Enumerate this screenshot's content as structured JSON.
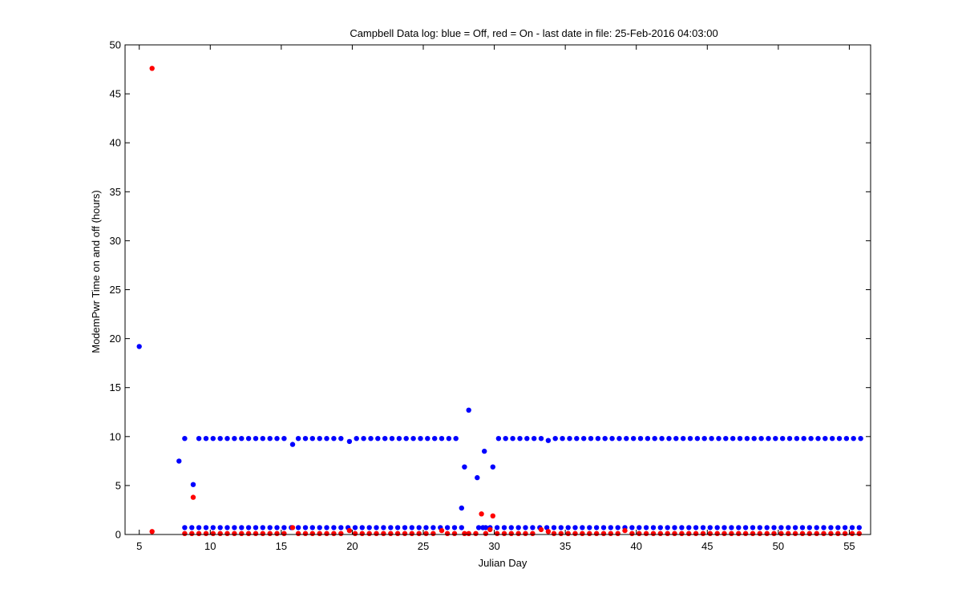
{
  "chart_data": {
    "type": "scatter",
    "title": "Campbell Data log: blue = Off, red = On -  last date in file: 25-Feb-2016 04:03:00",
    "xlabel": "Julian Day",
    "ylabel": "ModemPwr Time on and off (hours)",
    "xlim": [
      4,
      56.5
    ],
    "ylim": [
      0,
      50
    ],
    "xticks": [
      5,
      10,
      15,
      20,
      25,
      30,
      35,
      40,
      45,
      50,
      55
    ],
    "yticks": [
      0,
      5,
      10,
      15,
      20,
      25,
      30,
      35,
      40,
      45,
      50
    ],
    "grid": false,
    "series": [
      {
        "color": "#0000ff",
        "points": [
          [
            5.0,
            19.2
          ],
          [
            7.8,
            7.5
          ],
          [
            8.8,
            5.1
          ],
          [
            27.7,
            2.7
          ],
          [
            27.9,
            6.9
          ],
          [
            28.2,
            12.7
          ],
          [
            28.8,
            5.8
          ],
          [
            29.3,
            8.5
          ],
          [
            29.9,
            6.9
          ],
          [
            15.8,
            9.2
          ],
          [
            19.8,
            9.5
          ],
          [
            33.8,
            9.6
          ],
          [
            8.2,
            9.8
          ],
          [
            9.2,
            9.8
          ],
          [
            9.7,
            9.8
          ],
          [
            10.2,
            9.8
          ],
          [
            10.7,
            9.8
          ],
          [
            11.2,
            9.8
          ],
          [
            11.7,
            9.8
          ],
          [
            12.2,
            9.8
          ],
          [
            12.7,
            9.8
          ],
          [
            13.2,
            9.8
          ],
          [
            13.7,
            9.8
          ],
          [
            14.2,
            9.8
          ],
          [
            14.7,
            9.8
          ],
          [
            15.2,
            9.8
          ],
          [
            16.2,
            9.8
          ],
          [
            16.7,
            9.8
          ],
          [
            17.2,
            9.8
          ],
          [
            17.7,
            9.8
          ],
          [
            18.2,
            9.8
          ],
          [
            18.7,
            9.8
          ],
          [
            19.2,
            9.8
          ],
          [
            20.3,
            9.8
          ],
          [
            20.8,
            9.8
          ],
          [
            21.3,
            9.8
          ],
          [
            21.8,
            9.8
          ],
          [
            22.3,
            9.8
          ],
          [
            22.8,
            9.8
          ],
          [
            23.3,
            9.8
          ],
          [
            23.8,
            9.8
          ],
          [
            24.3,
            9.8
          ],
          [
            24.8,
            9.8
          ],
          [
            25.3,
            9.8
          ],
          [
            25.8,
            9.8
          ],
          [
            26.3,
            9.8
          ],
          [
            26.8,
            9.8
          ],
          [
            27.3,
            9.8
          ],
          [
            30.3,
            9.8
          ],
          [
            30.8,
            9.8
          ],
          [
            31.3,
            9.8
          ],
          [
            31.8,
            9.8
          ],
          [
            32.3,
            9.8
          ],
          [
            32.8,
            9.8
          ],
          [
            33.3,
            9.8
          ],
          [
            34.3,
            9.8
          ],
          [
            34.8,
            9.8
          ],
          [
            35.3,
            9.8
          ],
          [
            35.8,
            9.8
          ],
          [
            36.3,
            9.8
          ],
          [
            36.8,
            9.8
          ],
          [
            37.3,
            9.8
          ],
          [
            37.8,
            9.8
          ],
          [
            38.3,
            9.8
          ],
          [
            38.8,
            9.8
          ],
          [
            39.3,
            9.8
          ],
          [
            39.8,
            9.8
          ],
          [
            40.3,
            9.8
          ],
          [
            40.8,
            9.8
          ],
          [
            41.3,
            9.8
          ],
          [
            41.8,
            9.8
          ],
          [
            42.3,
            9.8
          ],
          [
            42.8,
            9.8
          ],
          [
            43.3,
            9.8
          ],
          [
            43.8,
            9.8
          ],
          [
            44.3,
            9.8
          ],
          [
            44.8,
            9.8
          ],
          [
            45.3,
            9.8
          ],
          [
            45.8,
            9.8
          ],
          [
            46.3,
            9.8
          ],
          [
            46.8,
            9.8
          ],
          [
            47.3,
            9.8
          ],
          [
            47.8,
            9.8
          ],
          [
            48.3,
            9.8
          ],
          [
            48.8,
            9.8
          ],
          [
            49.3,
            9.8
          ],
          [
            49.8,
            9.8
          ],
          [
            50.3,
            9.8
          ],
          [
            50.8,
            9.8
          ],
          [
            51.3,
            9.8
          ],
          [
            51.8,
            9.8
          ],
          [
            52.3,
            9.8
          ],
          [
            52.8,
            9.8
          ],
          [
            53.3,
            9.8
          ],
          [
            53.8,
            9.8
          ],
          [
            54.3,
            9.8
          ],
          [
            54.8,
            9.8
          ],
          [
            55.3,
            9.8
          ],
          [
            55.8,
            9.8
          ],
          [
            8.2,
            0.7
          ],
          [
            8.7,
            0.7
          ],
          [
            9.2,
            0.7
          ],
          [
            9.7,
            0.7
          ],
          [
            10.2,
            0.7
          ],
          [
            10.7,
            0.7
          ],
          [
            11.2,
            0.7
          ],
          [
            11.7,
            0.7
          ],
          [
            12.2,
            0.7
          ],
          [
            12.7,
            0.7
          ],
          [
            13.2,
            0.7
          ],
          [
            13.7,
            0.7
          ],
          [
            14.2,
            0.7
          ],
          [
            14.7,
            0.7
          ],
          [
            15.2,
            0.7
          ],
          [
            15.7,
            0.7
          ],
          [
            16.2,
            0.7
          ],
          [
            16.7,
            0.7
          ],
          [
            17.2,
            0.7
          ],
          [
            17.7,
            0.7
          ],
          [
            18.2,
            0.7
          ],
          [
            18.7,
            0.7
          ],
          [
            19.2,
            0.7
          ],
          [
            19.7,
            0.7
          ],
          [
            20.2,
            0.7
          ],
          [
            20.7,
            0.7
          ],
          [
            21.2,
            0.7
          ],
          [
            21.7,
            0.7
          ],
          [
            22.2,
            0.7
          ],
          [
            22.7,
            0.7
          ],
          [
            23.2,
            0.7
          ],
          [
            23.7,
            0.7
          ],
          [
            24.2,
            0.7
          ],
          [
            24.7,
            0.7
          ],
          [
            25.2,
            0.7
          ],
          [
            25.7,
            0.7
          ],
          [
            26.2,
            0.7
          ],
          [
            26.7,
            0.7
          ],
          [
            27.2,
            0.7
          ],
          [
            27.7,
            0.7
          ],
          [
            28.9,
            0.7
          ],
          [
            29.2,
            0.7
          ],
          [
            29.4,
            0.7
          ],
          [
            29.7,
            0.7
          ],
          [
            30.2,
            0.7
          ],
          [
            30.7,
            0.7
          ],
          [
            31.2,
            0.7
          ],
          [
            31.7,
            0.7
          ],
          [
            32.2,
            0.7
          ],
          [
            32.7,
            0.7
          ],
          [
            33.2,
            0.7
          ],
          [
            33.7,
            0.7
          ],
          [
            34.2,
            0.7
          ],
          [
            34.7,
            0.7
          ],
          [
            35.2,
            0.7
          ],
          [
            35.7,
            0.7
          ],
          [
            36.2,
            0.7
          ],
          [
            36.7,
            0.7
          ],
          [
            37.2,
            0.7
          ],
          [
            37.7,
            0.7
          ],
          [
            38.2,
            0.7
          ],
          [
            38.7,
            0.7
          ],
          [
            39.2,
            0.7
          ],
          [
            39.7,
            0.7
          ],
          [
            40.2,
            0.7
          ],
          [
            40.7,
            0.7
          ],
          [
            41.2,
            0.7
          ],
          [
            41.7,
            0.7
          ],
          [
            42.2,
            0.7
          ],
          [
            42.7,
            0.7
          ],
          [
            43.2,
            0.7
          ],
          [
            43.7,
            0.7
          ],
          [
            44.2,
            0.7
          ],
          [
            44.7,
            0.7
          ],
          [
            45.2,
            0.7
          ],
          [
            45.7,
            0.7
          ],
          [
            46.2,
            0.7
          ],
          [
            46.7,
            0.7
          ],
          [
            47.2,
            0.7
          ],
          [
            47.7,
            0.7
          ],
          [
            48.2,
            0.7
          ],
          [
            48.7,
            0.7
          ],
          [
            49.2,
            0.7
          ],
          [
            49.7,
            0.7
          ],
          [
            50.2,
            0.7
          ],
          [
            50.7,
            0.7
          ],
          [
            51.2,
            0.7
          ],
          [
            51.7,
            0.7
          ],
          [
            52.2,
            0.7
          ],
          [
            52.7,
            0.7
          ],
          [
            53.2,
            0.7
          ],
          [
            53.7,
            0.7
          ],
          [
            54.2,
            0.7
          ],
          [
            54.7,
            0.7
          ],
          [
            55.2,
            0.7
          ],
          [
            55.7,
            0.7
          ]
        ]
      },
      {
        "color": "#ff0000",
        "points": [
          [
            5.9,
            47.6
          ],
          [
            5.9,
            0.3
          ],
          [
            8.8,
            3.8
          ],
          [
            15.8,
            0.7
          ],
          [
            19.8,
            0.4
          ],
          [
            26.3,
            0.4
          ],
          [
            27.9,
            0.1
          ],
          [
            29.1,
            2.1
          ],
          [
            29.7,
            0.5
          ],
          [
            29.9,
            1.9
          ],
          [
            33.3,
            0.5
          ],
          [
            33.8,
            0.3
          ],
          [
            39.2,
            0.4
          ],
          [
            8.2,
            0.1
          ],
          [
            8.7,
            0.1
          ],
          [
            9.2,
            0.1
          ],
          [
            9.7,
            0.1
          ],
          [
            10.2,
            0.1
          ],
          [
            10.7,
            0.1
          ],
          [
            11.2,
            0.1
          ],
          [
            11.7,
            0.1
          ],
          [
            12.2,
            0.1
          ],
          [
            12.7,
            0.1
          ],
          [
            13.2,
            0.1
          ],
          [
            13.7,
            0.1
          ],
          [
            14.2,
            0.1
          ],
          [
            14.7,
            0.1
          ],
          [
            15.2,
            0.1
          ],
          [
            16.2,
            0.1
          ],
          [
            16.7,
            0.1
          ],
          [
            17.2,
            0.1
          ],
          [
            17.7,
            0.1
          ],
          [
            18.2,
            0.1
          ],
          [
            18.7,
            0.1
          ],
          [
            19.2,
            0.1
          ],
          [
            20.2,
            0.1
          ],
          [
            20.7,
            0.1
          ],
          [
            21.2,
            0.1
          ],
          [
            21.7,
            0.1
          ],
          [
            22.2,
            0.1
          ],
          [
            22.7,
            0.1
          ],
          [
            23.2,
            0.1
          ],
          [
            23.7,
            0.1
          ],
          [
            24.2,
            0.1
          ],
          [
            24.7,
            0.1
          ],
          [
            25.2,
            0.1
          ],
          [
            25.7,
            0.1
          ],
          [
            26.7,
            0.1
          ],
          [
            27.2,
            0.1
          ],
          [
            28.2,
            0.1
          ],
          [
            28.7,
            0.1
          ],
          [
            29.4,
            0.1
          ],
          [
            30.2,
            0.1
          ],
          [
            30.7,
            0.1
          ],
          [
            31.2,
            0.1
          ],
          [
            31.7,
            0.1
          ],
          [
            32.2,
            0.1
          ],
          [
            32.7,
            0.1
          ],
          [
            34.2,
            0.1
          ],
          [
            34.7,
            0.1
          ],
          [
            35.2,
            0.1
          ],
          [
            35.7,
            0.1
          ],
          [
            36.2,
            0.1
          ],
          [
            36.7,
            0.1
          ],
          [
            37.2,
            0.1
          ],
          [
            37.7,
            0.1
          ],
          [
            38.2,
            0.1
          ],
          [
            38.7,
            0.1
          ],
          [
            39.7,
            0.1
          ],
          [
            40.2,
            0.1
          ],
          [
            40.7,
            0.1
          ],
          [
            41.2,
            0.1
          ],
          [
            41.7,
            0.1
          ],
          [
            42.2,
            0.1
          ],
          [
            42.7,
            0.1
          ],
          [
            43.2,
            0.1
          ],
          [
            43.7,
            0.1
          ],
          [
            44.2,
            0.1
          ],
          [
            44.7,
            0.1
          ],
          [
            45.2,
            0.1
          ],
          [
            45.7,
            0.1
          ],
          [
            46.2,
            0.1
          ],
          [
            46.7,
            0.1
          ],
          [
            47.2,
            0.1
          ],
          [
            47.7,
            0.1
          ],
          [
            48.2,
            0.1
          ],
          [
            48.7,
            0.1
          ],
          [
            49.2,
            0.1
          ],
          [
            49.7,
            0.1
          ],
          [
            50.2,
            0.1
          ],
          [
            50.7,
            0.1
          ],
          [
            51.2,
            0.1
          ],
          [
            51.7,
            0.1
          ],
          [
            52.2,
            0.1
          ],
          [
            52.7,
            0.1
          ],
          [
            53.2,
            0.1
          ],
          [
            53.7,
            0.1
          ],
          [
            54.2,
            0.1
          ],
          [
            54.7,
            0.1
          ],
          [
            55.2,
            0.1
          ],
          [
            55.7,
            0.1
          ]
        ]
      }
    ]
  }
}
